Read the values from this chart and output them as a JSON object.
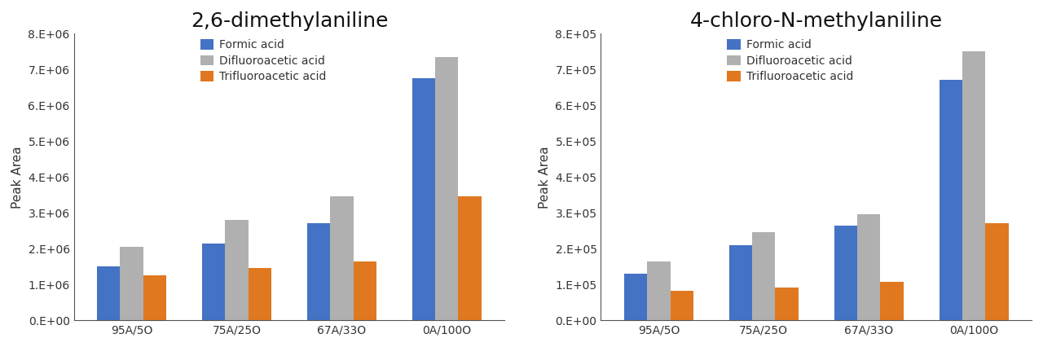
{
  "chart1": {
    "title": "2,6-dimethylaniline",
    "ylabel": "Peak Area",
    "categories": [
      "95A/5O",
      "75A/25O",
      "67A/33O",
      "0A/100O"
    ],
    "series": {
      "Formic acid": [
        1500000,
        2150000,
        2700000,
        6750000
      ],
      "Difluoroacetic acid": [
        2050000,
        2800000,
        3450000,
        7350000
      ],
      "Trifluoroacetic acid": [
        1250000,
        1450000,
        1650000,
        3450000
      ]
    },
    "ylim": [
      0,
      8000000
    ],
    "yticks": [
      0,
      1000000,
      2000000,
      3000000,
      4000000,
      5000000,
      6000000,
      7000000,
      8000000
    ]
  },
  "chart2": {
    "title": "4-chloro-N-methylaniline",
    "ylabel": "Peak Area",
    "categories": [
      "95A/5O",
      "75A/25O",
      "67A/33O",
      "0A/100O"
    ],
    "series": {
      "Formic acid": [
        130000,
        210000,
        265000,
        670000
      ],
      "Difluoroacetic acid": [
        165000,
        245000,
        295000,
        750000
      ],
      "Trifluoroacetic acid": [
        82000,
        92000,
        107000,
        270000
      ]
    },
    "ylim": [
      0,
      800000
    ],
    "yticks": [
      0,
      100000,
      200000,
      300000,
      400000,
      500000,
      600000,
      700000,
      800000
    ]
  },
  "colors": {
    "Formic acid": "#4472C4",
    "Difluoroacetic acid": "#B0B0B0",
    "Trifluoroacetic acid": "#E07820"
  },
  "legend_labels": [
    "Formic acid",
    "Difluoroacetic acid",
    "Trifluoroacetic acid"
  ],
  "bar_width": 0.22,
  "title_fontsize": 18,
  "axis_label_fontsize": 11,
  "tick_fontsize": 10,
  "legend_fontsize": 10,
  "background_color": "#FFFFFF"
}
